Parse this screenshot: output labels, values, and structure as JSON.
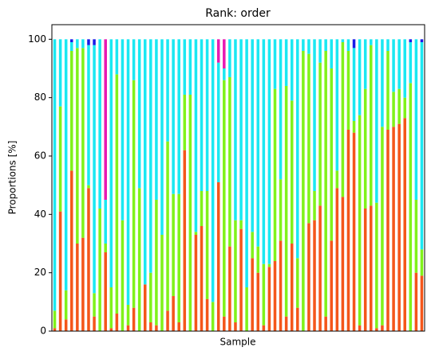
{
  "chart_data": {
    "type": "stacked_bar",
    "title": "Rank: order",
    "xlabel": "Sample",
    "ylabel": "Proportions [%]",
    "ylim": [
      0,
      105
    ],
    "yticks": [
      0,
      20,
      40,
      60,
      80,
      100
    ],
    "series": [
      {
        "color": "#f4561a",
        "values": [
          1,
          41,
          4,
          55,
          30,
          32,
          49,
          5,
          0,
          27,
          1,
          6,
          0,
          2,
          8,
          0,
          16,
          3,
          2,
          0,
          7,
          12,
          3,
          62,
          0,
          33,
          36,
          11,
          0,
          51,
          5,
          29,
          3,
          35,
          0,
          25,
          20,
          2,
          22,
          24,
          31,
          5,
          30,
          8,
          0,
          37,
          38,
          43,
          5,
          31,
          49,
          46,
          69,
          68,
          2,
          42,
          43,
          1,
          2,
          69,
          70,
          71,
          73,
          0,
          20,
          19
        ]
      },
      {
        "color": "#80f21a",
        "values": [
          6,
          36,
          10,
          41,
          67,
          65,
          1,
          8,
          42,
          3,
          14,
          82,
          38,
          7,
          78,
          49,
          0,
          17,
          43,
          33,
          58,
          35,
          44,
          19,
          81,
          1,
          12,
          37,
          10,
          0,
          81,
          58,
          35,
          3,
          15,
          9,
          9,
          21,
          1,
          59,
          21,
          79,
          49,
          17,
          96,
          58,
          10,
          49,
          91,
          59,
          6,
          53,
          27,
          4,
          72,
          41,
          55,
          43,
          68,
          27,
          12,
          12,
          7,
          85,
          25,
          9
        ]
      },
      {
        "color": "#1ae8f2",
        "values": [
          93,
          23,
          86,
          3,
          3,
          3,
          48,
          85,
          58,
          15,
          85,
          12,
          62,
          91,
          14,
          51,
          84,
          80,
          55,
          67,
          35,
          53,
          53,
          19,
          19,
          66,
          52,
          52,
          90,
          41,
          4,
          13,
          62,
          62,
          85,
          66,
          71,
          77,
          77,
          17,
          48,
          16,
          21,
          75,
          4,
          5,
          52,
          8,
          4,
          10,
          45,
          1,
          4,
          25,
          26,
          17,
          2,
          56,
          30,
          4,
          18,
          17,
          20,
          14,
          55,
          71
        ]
      },
      {
        "color": "#e81ab4",
        "values": [
          0,
          0,
          0,
          0,
          0,
          0,
          0,
          0,
          0,
          55,
          0,
          0,
          0,
          0,
          0,
          0,
          0,
          0,
          0,
          0,
          0,
          0,
          0,
          0,
          0,
          0,
          0,
          0,
          0,
          8,
          10,
          0,
          0,
          0,
          0,
          0,
          0,
          0,
          0,
          0,
          0,
          0,
          0,
          0,
          0,
          0,
          0,
          0,
          0,
          0,
          0,
          0,
          0,
          0,
          0,
          0,
          0,
          0,
          0,
          0,
          0,
          0,
          0,
          0,
          0,
          0
        ]
      },
      {
        "color": "#1a1ae8",
        "values": [
          0,
          0,
          0,
          1,
          0,
          0,
          2,
          2,
          0,
          0,
          0,
          0,
          0,
          0,
          0,
          0,
          0,
          0,
          0,
          0,
          0,
          0,
          0,
          0,
          0,
          0,
          0,
          0,
          0,
          0,
          0,
          0,
          0,
          0,
          0,
          0,
          0,
          0,
          0,
          0,
          0,
          0,
          0,
          0,
          0,
          0,
          0,
          0,
          0,
          0,
          0,
          0,
          0,
          3,
          0,
          0,
          0,
          0,
          0,
          0,
          0,
          0,
          0,
          1,
          0,
          1
        ]
      }
    ]
  }
}
